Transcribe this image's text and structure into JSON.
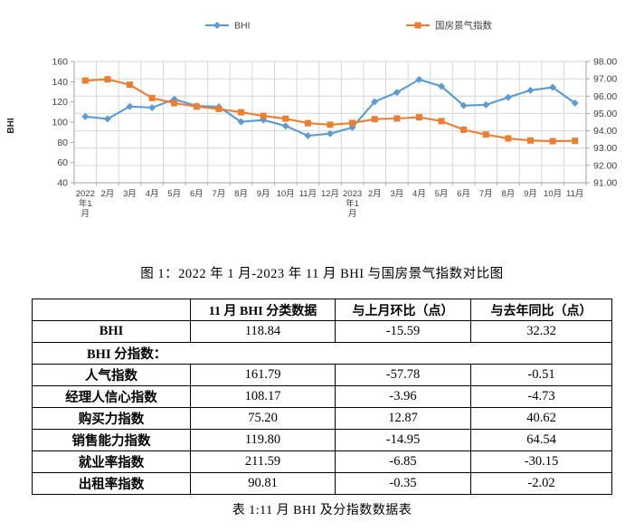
{
  "figure_caption": "图 1：2022 年 1 月-2023 年 11 月 BHI 与国房景气指数对比图",
  "table_caption": "表 1:11 月 BHI 及分指数数据表",
  "chart_data": {
    "type": "line",
    "categories": [
      "2022年1月",
      "2月",
      "3月",
      "4月",
      "5月",
      "6月",
      "7月",
      "8月",
      "9月",
      "10月",
      "11月",
      "12月",
      "2023年1月",
      "2月",
      "3月",
      "4月",
      "5月",
      "6月",
      "7月",
      "8月",
      "9月",
      "10月",
      "11月"
    ],
    "series": [
      {
        "name": "BHI",
        "axis": "left",
        "color": "#5B9BD5",
        "marker": "diamond",
        "values": [
          105.5,
          103.2,
          115.5,
          114.3,
          122.6,
          116.0,
          115.1,
          100.3,
          102.1,
          96.2,
          86.52,
          88.6,
          94.7,
          120.2,
          129.4,
          142.2,
          135.5,
          116.4,
          117.1,
          124.5,
          131.5,
          134.43,
          118.84
        ]
      },
      {
        "name": "国房景气指数",
        "axis": "right",
        "color": "#ED7D31",
        "marker": "square",
        "values": [
          96.9,
          96.97,
          96.66,
          95.89,
          95.6,
          95.4,
          95.26,
          95.07,
          94.86,
          94.7,
          94.44,
          94.35,
          94.45,
          94.67,
          94.71,
          94.78,
          94.56,
          94.06,
          93.78,
          93.56,
          93.44,
          93.4,
          93.42
        ]
      }
    ],
    "left_axis": {
      "title": "BHI",
      "min": 40,
      "max": 160,
      "ticks": [
        "160",
        "140",
        "120",
        "100",
        "80",
        "60",
        "40"
      ]
    },
    "right_axis": {
      "min": 91,
      "max": 98,
      "ticks": [
        "98.00",
        "97.00",
        "96.00",
        "95.00",
        "94.00",
        "93.00",
        "92.00",
        "91.00"
      ]
    },
    "legend_position": "top",
    "grid": true,
    "colors": {
      "grid": "#D6D6D6",
      "axis": "#A6A6A6",
      "tick_text": "#404040"
    }
  },
  "table": {
    "headers": [
      "",
      "11 月 BHI 分类数据",
      "与上月环比（点）",
      "与去年同比（点）"
    ],
    "rows": [
      {
        "cells": [
          "BHI",
          "118.84",
          "-15.59",
          "32.32"
        ]
      },
      {
        "section": "BHI 分指数："
      },
      {
        "cells": [
          "人气指数",
          "161.79",
          "-57.78",
          "-0.51"
        ]
      },
      {
        "cells": [
          "经理人信心指数",
          "108.17",
          "-3.96",
          "-4.73"
        ]
      },
      {
        "cells": [
          "购买力指数",
          "75.20",
          "12.87",
          "40.62"
        ]
      },
      {
        "cells": [
          "销售能力指数",
          "119.80",
          "-14.95",
          "64.54"
        ]
      },
      {
        "cells": [
          "就业率指数",
          "211.59",
          "-6.85",
          "-30.15"
        ]
      },
      {
        "cells": [
          "出租率指数",
          "90.81",
          "-0.35",
          "-2.02"
        ]
      }
    ]
  }
}
